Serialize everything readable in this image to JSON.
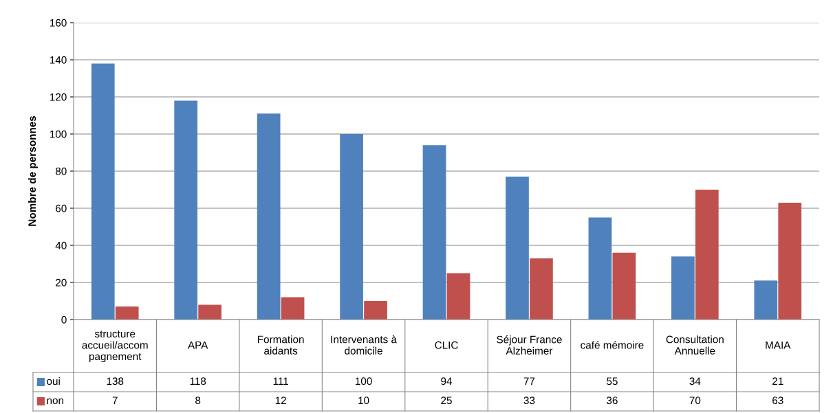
{
  "chart_data": {
    "type": "bar",
    "ylabel": "Nombre de personnes",
    "categories": [
      "structure accueil/accompagnement",
      "APA",
      "Formation aidants",
      "Intervenants à domicile",
      "CLIC",
      "Séjour France Alzheimer",
      "café mémoire",
      "Consultation Annuelle",
      "MAIA"
    ],
    "series": [
      {
        "name": "oui",
        "color": "#4f81bd",
        "values": [
          138,
          118,
          111,
          100,
          94,
          77,
          55,
          34,
          21
        ]
      },
      {
        "name": "non",
        "color": "#c0504d",
        "values": [
          7,
          8,
          12,
          10,
          25,
          33,
          36,
          70,
          63
        ]
      }
    ],
    "ylim": [
      0,
      160
    ],
    "yticks": [
      0,
      20,
      40,
      60,
      80,
      100,
      120,
      140,
      160
    ],
    "grid": "y",
    "legend": "bottom left",
    "data_labels": true
  }
}
